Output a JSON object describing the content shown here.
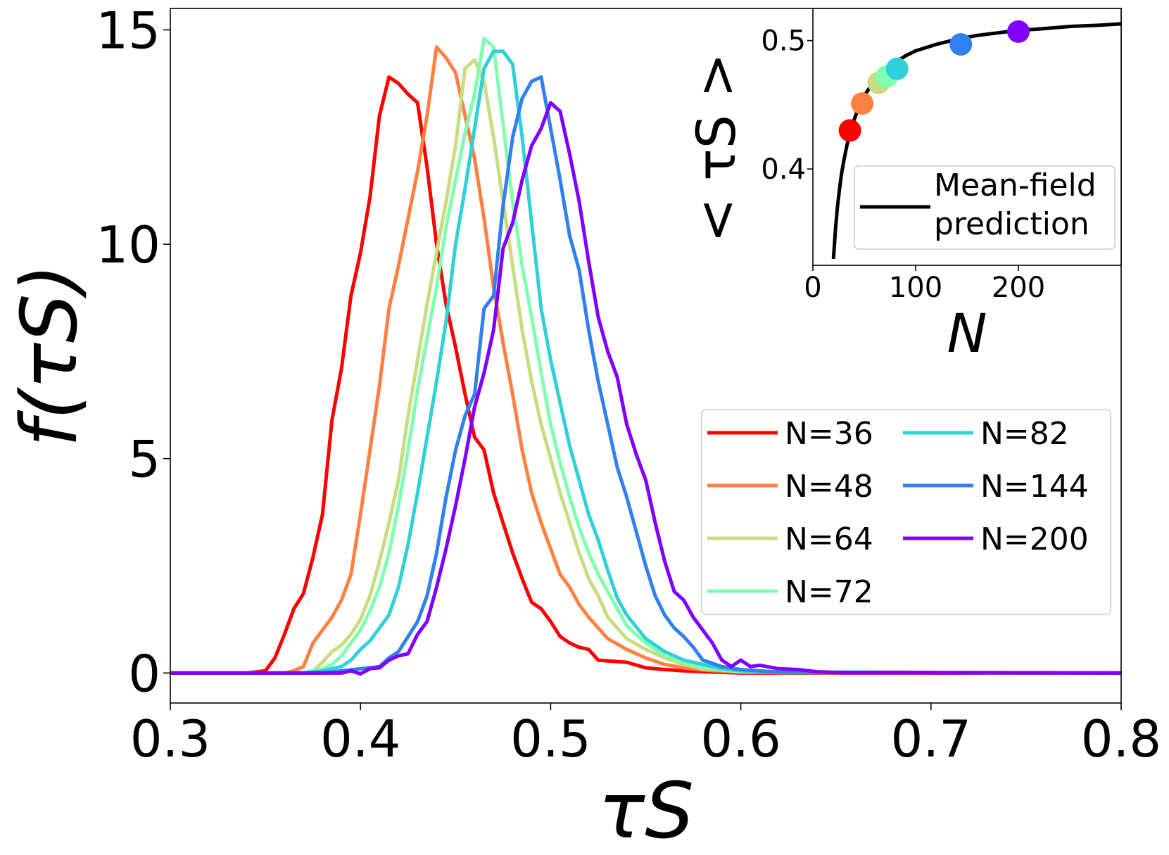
{
  "chart_data": [
    {
      "type": "line",
      "xlabel": "τS",
      "ylabel": "f(τS)",
      "xlim": [
        0.3,
        0.8
      ],
      "ylim": [
        -0.7,
        15.5
      ],
      "xticks": [
        0.3,
        0.4,
        0.5,
        0.6,
        0.7,
        0.8
      ],
      "xtick_labels": [
        "0.3",
        "0.4",
        "0.5",
        "0.6",
        "0.7",
        "0.8"
      ],
      "yticks": [
        0,
        5,
        10,
        15
      ],
      "ytick_labels": [
        "0",
        "5",
        "10",
        "15"
      ],
      "legend_position": "center-right",
      "legend_columns": 2,
      "series": [
        {
          "name": "N=36",
          "color": "#ff0000",
          "x": [
            0.3,
            0.34,
            0.35,
            0.355,
            0.36,
            0.365,
            0.37,
            0.375,
            0.38,
            0.385,
            0.39,
            0.395,
            0.4,
            0.405,
            0.41,
            0.415,
            0.42,
            0.425,
            0.43,
            0.435,
            0.44,
            0.445,
            0.45,
            0.455,
            0.46,
            0.465,
            0.47,
            0.475,
            0.48,
            0.485,
            0.49,
            0.495,
            0.5,
            0.505,
            0.51,
            0.515,
            0.52,
            0.525,
            0.53,
            0.54,
            0.55,
            0.56,
            0.57,
            0.58,
            0.6,
            0.8
          ],
          "y": [
            0,
            0,
            0.05,
            0.35,
            0.9,
            1.5,
            1.85,
            2.7,
            3.7,
            5.9,
            7.1,
            8.8,
            9.8,
            11.1,
            13.0,
            13.9,
            13.75,
            13.5,
            13.3,
            11.8,
            10.0,
            8.6,
            7.6,
            6.5,
            5.5,
            5.2,
            4.2,
            3.5,
            2.8,
            2.2,
            1.65,
            1.5,
            1.2,
            0.85,
            0.7,
            0.6,
            0.55,
            0.3,
            0.28,
            0.25,
            0.12,
            0.08,
            0.05,
            0.03,
            0,
            0
          ]
        },
        {
          "name": "N=48",
          "color": "#ff8040",
          "x": [
            0.3,
            0.36,
            0.365,
            0.37,
            0.375,
            0.38,
            0.385,
            0.39,
            0.395,
            0.4,
            0.405,
            0.41,
            0.415,
            0.42,
            0.425,
            0.43,
            0.435,
            0.44,
            0.445,
            0.45,
            0.455,
            0.46,
            0.465,
            0.47,
            0.475,
            0.48,
            0.485,
            0.49,
            0.495,
            0.5,
            0.505,
            0.51,
            0.515,
            0.52,
            0.53,
            0.54,
            0.55,
            0.56,
            0.57,
            0.58,
            0.6,
            0.8
          ],
          "y": [
            0,
            0,
            0.05,
            0.15,
            0.7,
            1.0,
            1.3,
            1.7,
            2.3,
            3.7,
            5.2,
            6.7,
            8.5,
            9.5,
            10.6,
            11.7,
            13.0,
            14.6,
            14.35,
            14.0,
            13.0,
            12.0,
            10.6,
            9.0,
            7.7,
            6.5,
            5.2,
            4.2,
            3.5,
            2.9,
            2.3,
            2.0,
            1.6,
            1.3,
            0.8,
            0.55,
            0.35,
            0.2,
            0.12,
            0.07,
            0.02,
            0
          ]
        },
        {
          "name": "N=64",
          "color": "#c8dc80",
          "x": [
            0.3,
            0.37,
            0.375,
            0.38,
            0.385,
            0.39,
            0.395,
            0.4,
            0.405,
            0.41,
            0.415,
            0.42,
            0.425,
            0.43,
            0.435,
            0.44,
            0.445,
            0.45,
            0.455,
            0.46,
            0.465,
            0.47,
            0.475,
            0.48,
            0.485,
            0.49,
            0.495,
            0.5,
            0.505,
            0.51,
            0.515,
            0.52,
            0.525,
            0.53,
            0.54,
            0.55,
            0.56,
            0.57,
            0.58,
            0.6,
            0.8
          ],
          "y": [
            0,
            0,
            0.05,
            0.25,
            0.5,
            0.65,
            0.9,
            1.25,
            1.8,
            2.6,
            3.5,
            4.5,
            6.0,
            7.3,
            8.6,
            9.8,
            11.0,
            12.3,
            14.1,
            14.3,
            13.8,
            12.5,
            11.0,
            9.5,
            8.0,
            6.8,
            5.8,
            5.0,
            4.2,
            3.5,
            2.8,
            2.2,
            1.8,
            1.3,
            0.8,
            0.55,
            0.35,
            0.2,
            0.1,
            0.03,
            0
          ]
        },
        {
          "name": "N=72",
          "color": "#80ffb0",
          "x": [
            0.3,
            0.37,
            0.38,
            0.385,
            0.39,
            0.395,
            0.4,
            0.405,
            0.41,
            0.415,
            0.42,
            0.425,
            0.43,
            0.435,
            0.44,
            0.445,
            0.45,
            0.455,
            0.46,
            0.465,
            0.47,
            0.475,
            0.48,
            0.485,
            0.49,
            0.495,
            0.5,
            0.505,
            0.51,
            0.515,
            0.52,
            0.525,
            0.53,
            0.535,
            0.54,
            0.55,
            0.56,
            0.57,
            0.58,
            0.6,
            0.8
          ],
          "y": [
            0,
            0,
            0.1,
            0.2,
            0.4,
            0.7,
            1.0,
            1.45,
            2.0,
            2.8,
            3.9,
            5.2,
            6.6,
            7.8,
            9.0,
            10.4,
            11.5,
            12.6,
            13.5,
            14.8,
            14.6,
            12.8,
            11.0,
            9.5,
            8.3,
            7.0,
            5.8,
            4.9,
            4.1,
            3.4,
            2.8,
            2.3,
            1.9,
            1.5,
            1.1,
            0.7,
            0.4,
            0.25,
            0.12,
            0.03,
            0
          ]
        },
        {
          "name": "N=82",
          "color": "#30d0d8",
          "x": [
            0.3,
            0.37,
            0.38,
            0.39,
            0.395,
            0.4,
            0.405,
            0.41,
            0.415,
            0.42,
            0.425,
            0.43,
            0.435,
            0.44,
            0.445,
            0.45,
            0.455,
            0.46,
            0.465,
            0.47,
            0.475,
            0.48,
            0.485,
            0.49,
            0.495,
            0.5,
            0.505,
            0.51,
            0.515,
            0.52,
            0.525,
            0.53,
            0.535,
            0.54,
            0.55,
            0.56,
            0.57,
            0.58,
            0.59,
            0.6,
            0.62,
            0.8
          ],
          "y": [
            0,
            0,
            0.05,
            0.15,
            0.3,
            0.55,
            0.75,
            1.05,
            1.35,
            2.0,
            3.0,
            4.2,
            5.5,
            6.8,
            8.2,
            10.0,
            11.3,
            12.7,
            14.1,
            14.5,
            14.5,
            14.2,
            12.5,
            10.5,
            8.5,
            7.3,
            6.3,
            5.3,
            4.5,
            3.7,
            3.1,
            2.4,
            1.75,
            1.35,
            0.8,
            0.5,
            0.3,
            0.2,
            0.1,
            0.05,
            0.01,
            0
          ]
        },
        {
          "name": "N=144",
          "color": "#3080f0",
          "x": [
            0.3,
            0.38,
            0.39,
            0.4,
            0.405,
            0.41,
            0.415,
            0.42,
            0.425,
            0.43,
            0.435,
            0.44,
            0.445,
            0.45,
            0.455,
            0.46,
            0.465,
            0.47,
            0.475,
            0.48,
            0.485,
            0.49,
            0.495,
            0.5,
            0.505,
            0.51,
            0.515,
            0.52,
            0.525,
            0.53,
            0.535,
            0.54,
            0.545,
            0.55,
            0.555,
            0.56,
            0.565,
            0.57,
            0.575,
            0.58,
            0.59,
            0.6,
            0.62,
            0.8
          ],
          "y": [
            0,
            0,
            0.05,
            0.1,
            0.12,
            0.15,
            0.35,
            0.5,
            0.85,
            1.2,
            1.8,
            2.8,
            4.1,
            5.2,
            6.0,
            6.5,
            8.5,
            8.8,
            10.9,
            12.5,
            13.4,
            13.8,
            13.9,
            12.7,
            11.5,
            10.2,
            9.4,
            8.0,
            6.8,
            5.8,
            4.8,
            4.1,
            3.3,
            2.5,
            1.8,
            1.35,
            1.05,
            0.85,
            0.6,
            0.3,
            0.15,
            0.08,
            0.02,
            0
          ]
        },
        {
          "name": "N=200",
          "color": "#8000ff",
          "x": [
            0.3,
            0.39,
            0.395,
            0.4,
            0.405,
            0.41,
            0.415,
            0.42,
            0.425,
            0.43,
            0.435,
            0.44,
            0.445,
            0.45,
            0.455,
            0.46,
            0.465,
            0.47,
            0.475,
            0.48,
            0.485,
            0.49,
            0.495,
            0.5,
            0.505,
            0.51,
            0.515,
            0.52,
            0.525,
            0.53,
            0.535,
            0.54,
            0.545,
            0.55,
            0.555,
            0.56,
            0.565,
            0.57,
            0.575,
            0.58,
            0.585,
            0.59,
            0.595,
            0.6,
            0.605,
            0.61,
            0.62,
            0.63,
            0.64,
            0.65,
            0.8
          ],
          "y": [
            0,
            0,
            0.05,
            -0.02,
            0.1,
            0.12,
            0.3,
            0.4,
            0.45,
            0.9,
            1.2,
            2.0,
            2.9,
            3.9,
            5.0,
            6.2,
            7.0,
            8.0,
            9.9,
            10.5,
            11.5,
            12.3,
            12.7,
            13.3,
            13.1,
            12.1,
            11.0,
            9.6,
            8.3,
            7.5,
            6.9,
            5.8,
            5.1,
            4.5,
            3.5,
            2.6,
            1.9,
            1.7,
            1.3,
            1.0,
            0.7,
            0.3,
            0.15,
            0.3,
            0.15,
            0.18,
            0.1,
            0.08,
            0.03,
            0.01,
            0
          ]
        }
      ]
    },
    {
      "type": "line",
      "title": "",
      "xlabel": "N",
      "ylabel": "< τS >",
      "xlim": [
        0,
        300
      ],
      "ylim": [
        0.325,
        0.525
      ],
      "xticks": [
        0,
        100,
        200
      ],
      "xtick_labels": [
        "0",
        "100",
        "200"
      ],
      "yticks": [
        0.4,
        0.5
      ],
      "ytick_labels": [
        "0.4",
        "0.5"
      ],
      "legend_position": "lower-right",
      "legend_label": "Mean-field prediction",
      "legend_lines": [
        "Mean-field",
        "prediction"
      ],
      "mean_field_curve": {
        "color": "#000000",
        "x": [
          20,
          22,
          24,
          26,
          28,
          30,
          33,
          36,
          40,
          45,
          50,
          55,
          60,
          70,
          80,
          90,
          100,
          120,
          140,
          160,
          180,
          200,
          220,
          250,
          280,
          300
        ],
        "y": [
          0.33,
          0.353,
          0.371,
          0.385,
          0.397,
          0.406,
          0.418,
          0.428,
          0.438,
          0.449,
          0.457,
          0.463,
          0.468,
          0.477,
          0.483,
          0.488,
          0.492,
          0.497,
          0.501,
          0.504,
          0.506,
          0.508,
          0.509,
          0.511,
          0.512,
          0.513
        ]
      },
      "points": [
        {
          "N": 36,
          "value": 0.43,
          "color": "#ff0000"
        },
        {
          "N": 48,
          "value": 0.451,
          "color": "#ff8040"
        },
        {
          "N": 64,
          "value": 0.467,
          "color": "#c8dc80"
        },
        {
          "N": 72,
          "value": 0.472,
          "color": "#80ffb0"
        },
        {
          "N": 82,
          "value": 0.478,
          "color": "#30d0d8"
        },
        {
          "N": 144,
          "value": 0.497,
          "color": "#3080f0"
        },
        {
          "N": 200,
          "value": 0.507,
          "color": "#8000ff"
        }
      ]
    }
  ]
}
